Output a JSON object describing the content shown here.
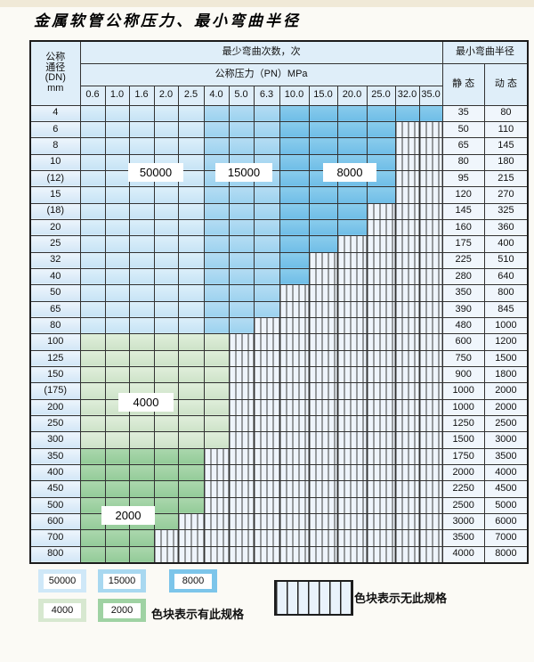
{
  "page": {
    "title": "金属软管公称压力、最小弯曲半径"
  },
  "table": {
    "header": {
      "dn_lines": [
        "公称",
        "通径",
        "(DN)",
        "mm"
      ],
      "cycles_label": "最少弯曲次数，次",
      "pressure_label": "公称压力（PN）MPa",
      "radius_label": "最小弯曲半径",
      "static_label": "静 态",
      "dynamic_label": "动 态",
      "pressures": [
        "0.6",
        "1.0",
        "1.6",
        "2.0",
        "2.5",
        "4.0",
        "5.0",
        "6.3",
        "10.0",
        "15.0",
        "20.0",
        "25.0",
        "32.0",
        "35.0"
      ]
    },
    "blue_zones": {
      "50000": [
        "0.6",
        "1.0",
        "1.6",
        "2.0",
        "2.5"
      ],
      "15000": [
        "4.0",
        "5.0",
        "6.3"
      ],
      "8000": [
        "10.0",
        "15.0",
        "20.0",
        "25.0",
        "32.0",
        "35.0"
      ]
    },
    "rows": [
      {
        "dn": "4",
        "family": "blue",
        "colored": 14,
        "static": "35",
        "dynamic": "80"
      },
      {
        "dn": "6",
        "family": "blue",
        "colored": 12,
        "static": "50",
        "dynamic": "110"
      },
      {
        "dn": "8",
        "family": "blue",
        "colored": 12,
        "static": "65",
        "dynamic": "145"
      },
      {
        "dn": "10",
        "family": "blue",
        "colored": 12,
        "static": "80",
        "dynamic": "180"
      },
      {
        "dn": "(12)",
        "family": "blue",
        "colored": 12,
        "static": "95",
        "dynamic": "215"
      },
      {
        "dn": "15",
        "family": "blue",
        "colored": 12,
        "static": "120",
        "dynamic": "270"
      },
      {
        "dn": "(18)",
        "family": "blue",
        "colored": 11,
        "static": "145",
        "dynamic": "325"
      },
      {
        "dn": "20",
        "family": "blue",
        "colored": 11,
        "static": "160",
        "dynamic": "360"
      },
      {
        "dn": "25",
        "family": "blue",
        "colored": 10,
        "static": "175",
        "dynamic": "400"
      },
      {
        "dn": "32",
        "family": "blue",
        "colored": 9,
        "static": "225",
        "dynamic": "510"
      },
      {
        "dn": "40",
        "family": "blue",
        "colored": 9,
        "static": "280",
        "dynamic": "640"
      },
      {
        "dn": "50",
        "family": "blue",
        "colored": 8,
        "static": "350",
        "dynamic": "800"
      },
      {
        "dn": "65",
        "family": "blue",
        "colored": 8,
        "static": "390",
        "dynamic": "845"
      },
      {
        "dn": "80",
        "family": "blue",
        "colored": 7,
        "static": "480",
        "dynamic": "1000"
      },
      {
        "dn": "100",
        "family": "green-4000",
        "colored": 6,
        "static": "600",
        "dynamic": "1200"
      },
      {
        "dn": "125",
        "family": "green-4000",
        "colored": 6,
        "static": "750",
        "dynamic": "1500"
      },
      {
        "dn": "150",
        "family": "green-4000",
        "colored": 6,
        "static": "900",
        "dynamic": "1800"
      },
      {
        "dn": "(175)",
        "family": "green-4000",
        "colored": 6,
        "static": "1000",
        "dynamic": "2000"
      },
      {
        "dn": "200",
        "family": "green-4000",
        "colored": 6,
        "static": "1000",
        "dynamic": "2000"
      },
      {
        "dn": "250",
        "family": "green-4000",
        "colored": 6,
        "static": "1250",
        "dynamic": "2500"
      },
      {
        "dn": "300",
        "family": "green-4000",
        "colored": 6,
        "static": "1500",
        "dynamic": "3000"
      },
      {
        "dn": "350",
        "family": "green-2000",
        "colored": 5,
        "static": "1750",
        "dynamic": "3500"
      },
      {
        "dn": "400",
        "family": "green-2000",
        "colored": 5,
        "static": "2000",
        "dynamic": "4000"
      },
      {
        "dn": "450",
        "family": "green-2000",
        "colored": 5,
        "static": "2250",
        "dynamic": "4500"
      },
      {
        "dn": "500",
        "family": "green-2000",
        "colored": 5,
        "static": "2500",
        "dynamic": "5000"
      },
      {
        "dn": "600",
        "family": "green-2000",
        "colored": 4,
        "static": "3000",
        "dynamic": "6000"
      },
      {
        "dn": "700",
        "family": "green-2000",
        "colored": 3,
        "static": "3500",
        "dynamic": "7000"
      },
      {
        "dn": "800",
        "family": "green-2000",
        "colored": 3,
        "static": "4000",
        "dynamic": "8000"
      }
    ]
  },
  "overlays": [
    {
      "label": "50000"
    },
    {
      "label": "15000"
    },
    {
      "label": "8000"
    },
    {
      "label": "4000"
    },
    {
      "label": "2000"
    }
  ],
  "legend": {
    "items": [
      {
        "label": "50000",
        "swatch": "blue-light"
      },
      {
        "label": "15000",
        "swatch": "blue-medium"
      },
      {
        "label": "8000",
        "swatch": "blue-dark"
      },
      {
        "label": "4000",
        "swatch": "green-light"
      },
      {
        "label": "2000",
        "swatch": "green-dark"
      }
    ],
    "present_text": "色块表示有此规格",
    "absent_text": "色块表示无此规格"
  },
  "colors": {
    "blue_50000": "#cfe8f8",
    "blue_15000": "#a8d8f0",
    "blue_8000": "#7cc5ea",
    "green_4000": "#d7e8d0",
    "green_2000": "#9fd2a3",
    "hatch_bg": "#eef4fb",
    "grid": "#333333"
  }
}
